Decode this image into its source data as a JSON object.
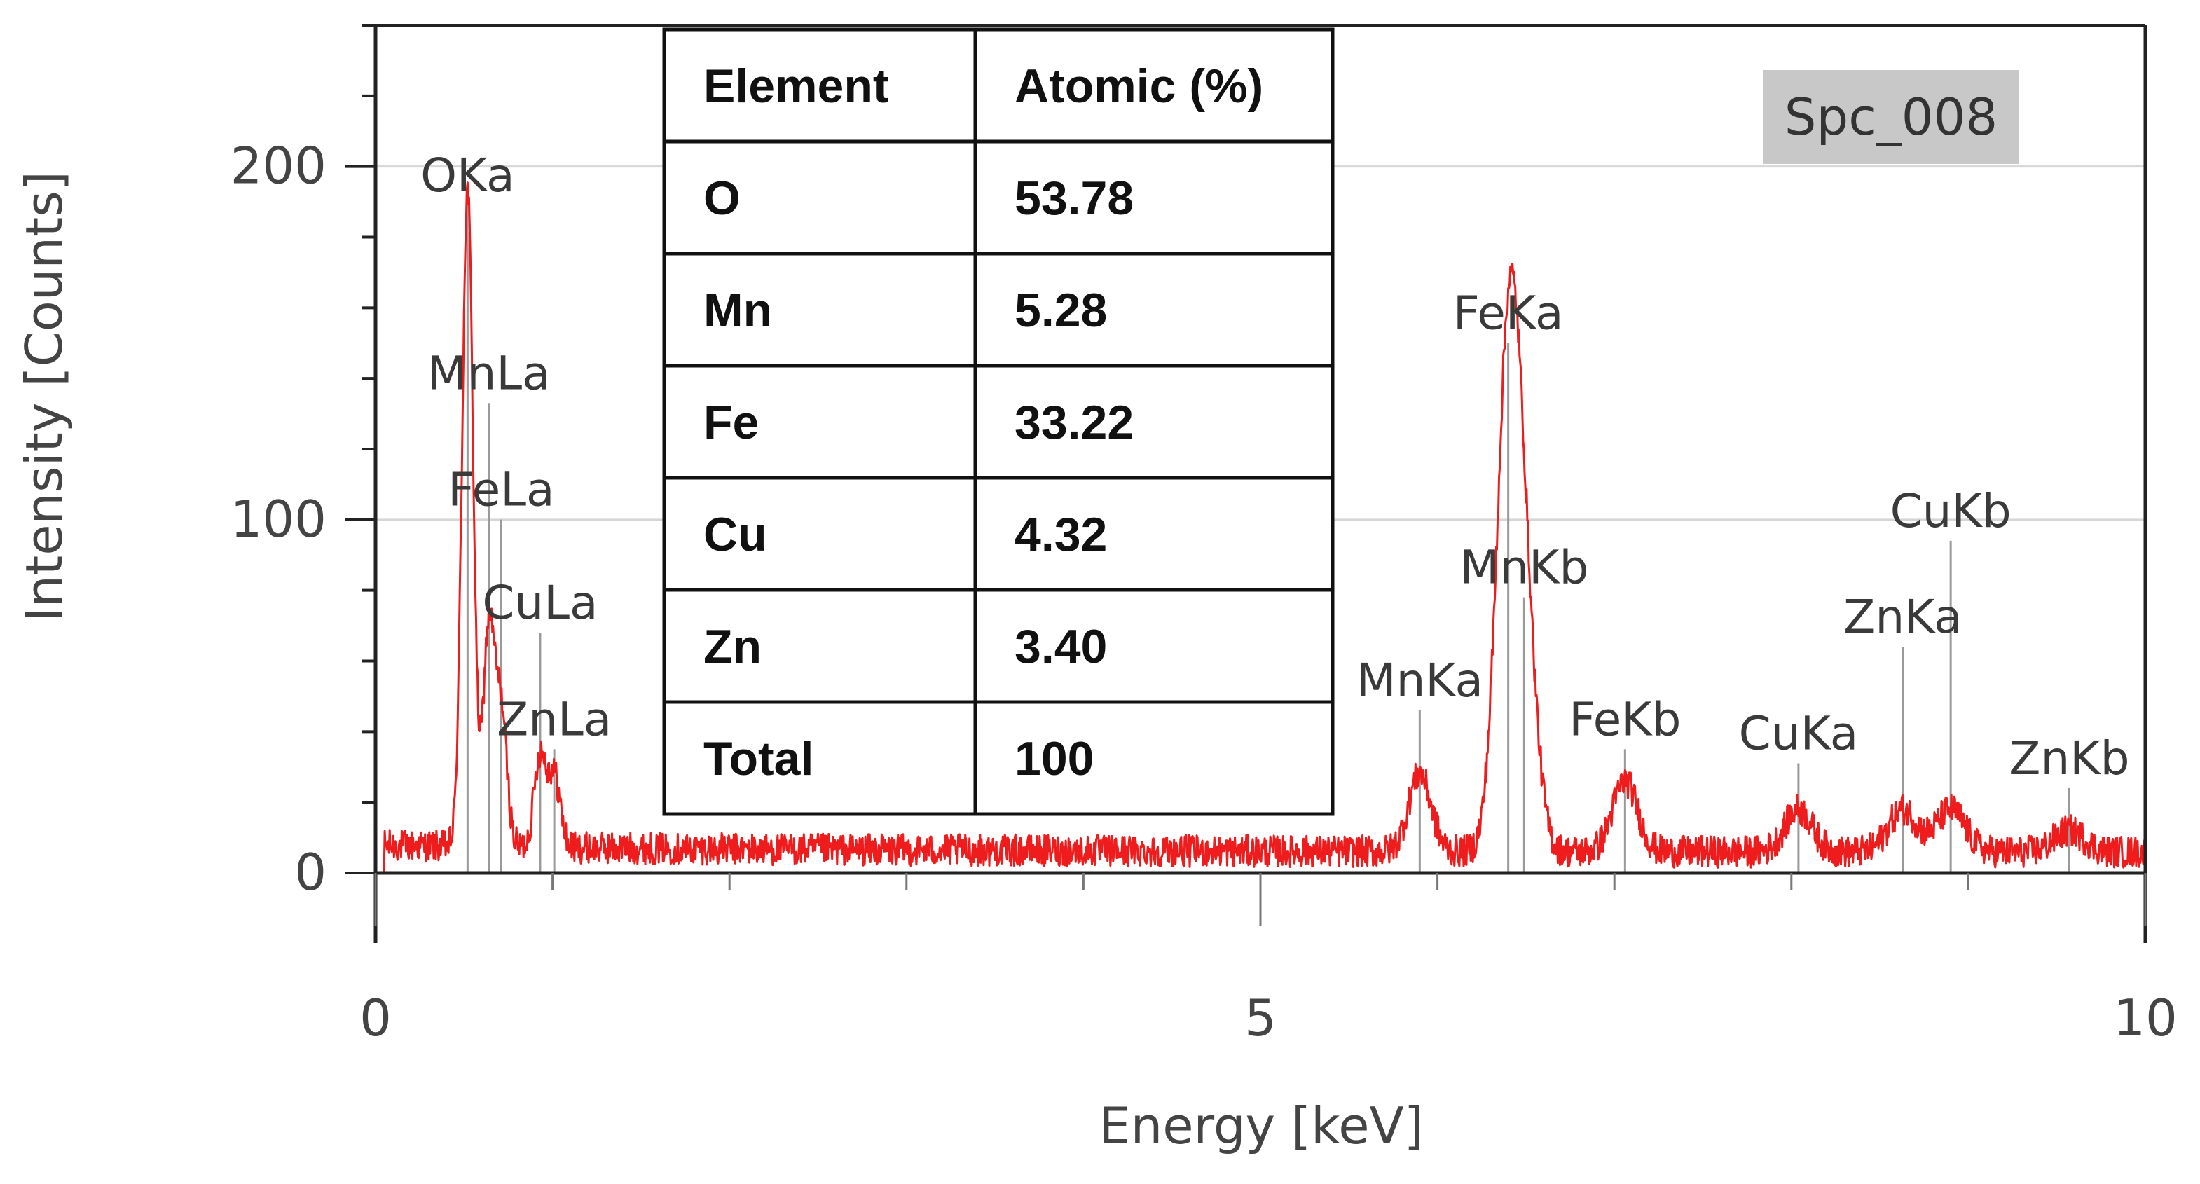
{
  "chart_data": {
    "type": "line",
    "xlabel": "Energy [keV]",
    "ylabel": "Intensity [Counts]",
    "xlim": [
      0,
      10
    ],
    "ylim": [
      0,
      240
    ],
    "x_ticks": [
      0,
      5,
      10
    ],
    "y_ticks": [
      0,
      100,
      200
    ],
    "grid": "horizontal",
    "series_color": "#ee1c1c",
    "spectrum_id": "Spc_008",
    "peaks": [
      {
        "label": "OKa",
        "energy": 0.52,
        "height": 186,
        "label_y": 193
      },
      {
        "label": "MnLa",
        "energy": 0.64,
        "height": 62,
        "label_y": 137
      },
      {
        "label": "FeLa",
        "energy": 0.71,
        "height": 38,
        "label_y": 104
      },
      {
        "label": "CuLa",
        "energy": 0.93,
        "height": 26,
        "label_y": 72
      },
      {
        "label": "ZnLa",
        "energy": 1.01,
        "height": 20,
        "label_y": 39
      },
      {
        "label": "MnKa",
        "energy": 5.9,
        "height": 22,
        "label_y": 50
      },
      {
        "label": "FeKa",
        "energy": 6.4,
        "height": 135,
        "label_y": 154
      },
      {
        "label": "MnKb",
        "energy": 6.49,
        "height": 60,
        "label_y": 82
      },
      {
        "label": "FeKb",
        "energy": 7.06,
        "height": 20,
        "label_y": 39
      },
      {
        "label": "CuKa",
        "energy": 8.04,
        "height": 12,
        "label_y": 35
      },
      {
        "label": "ZnKa",
        "energy": 8.63,
        "height": 12,
        "label_y": 68
      },
      {
        "label": "CuKb",
        "energy": 8.9,
        "height": 12,
        "label_y": 98
      },
      {
        "label": "ZnKb",
        "energy": 9.57,
        "height": 6,
        "label_y": 28
      }
    ],
    "table": {
      "headers": [
        "Element",
        "Atomic (%)"
      ],
      "rows": [
        [
          "O",
          "53.78"
        ],
        [
          "Mn",
          "5.28"
        ],
        [
          "Fe",
          "33.22"
        ],
        [
          "Cu",
          "4.32"
        ],
        [
          "Zn",
          "3.40"
        ],
        [
          "Total",
          "100"
        ]
      ]
    }
  }
}
